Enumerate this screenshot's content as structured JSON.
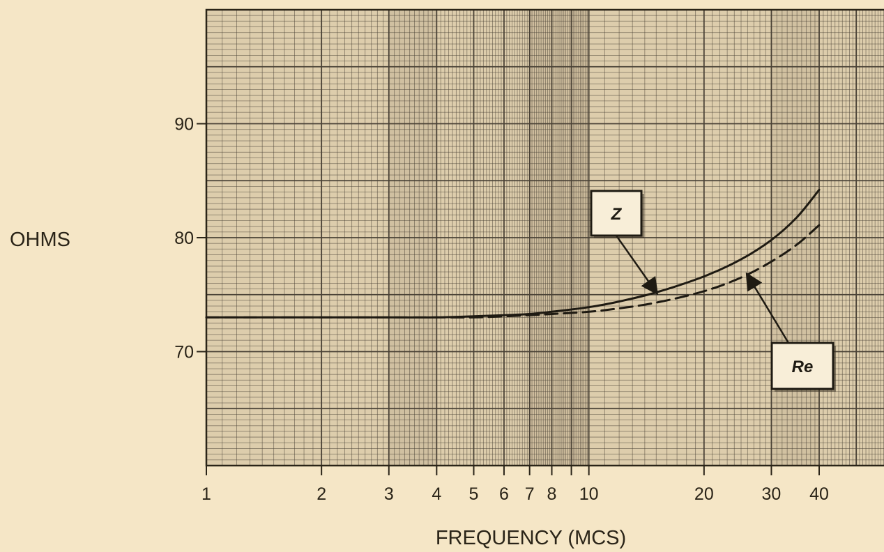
{
  "chart_data": {
    "type": "line",
    "xscale": "log",
    "xlabel": "FREQUENCY (MCS)",
    "ylabel": "OHMS",
    "xlim": [
      1,
      40
    ],
    "ylim": [
      60,
      100
    ],
    "grid": true,
    "x_ticks": [
      1,
      2,
      3,
      4,
      5,
      6,
      7,
      8,
      9,
      10,
      20,
      30,
      40
    ],
    "x_tick_labels": [
      "1",
      "2",
      "3",
      "4",
      "5",
      "6",
      "7",
      "8",
      "",
      "10",
      "20",
      "30",
      "40"
    ],
    "y_ticks": [
      70,
      80,
      90
    ],
    "y_tick_labels": [
      "70",
      "80",
      "90"
    ],
    "series": [
      {
        "name": "Z",
        "style": "solid",
        "x": [
          1,
          2,
          3,
          4,
          5,
          6,
          7,
          8,
          10,
          12,
          15,
          20,
          25,
          30,
          35,
          40
        ],
        "y": [
          73,
          73,
          73,
          73,
          73.1,
          73.2,
          73.3,
          73.5,
          73.9,
          74.4,
          75.2,
          76.6,
          78.1,
          79.8,
          81.8,
          84.2
        ]
      },
      {
        "name": "Re",
        "style": "dashed",
        "x": [
          1,
          2,
          3,
          4,
          5,
          6,
          7,
          8,
          10,
          12,
          15,
          20,
          25,
          30,
          35,
          40
        ],
        "y": [
          73,
          73,
          73,
          73,
          73,
          73.1,
          73.2,
          73.3,
          73.5,
          73.8,
          74.3,
          75.3,
          76.5,
          77.9,
          79.4,
          81.1
        ]
      }
    ],
    "annotations": [
      {
        "label": "Z",
        "series": "Z",
        "points_to": [
          15,
          75.2
        ]
      },
      {
        "label": "Re",
        "series": "Re",
        "points_to": [
          26,
          76.7
        ]
      }
    ],
    "colors": {
      "paper": "#f5e6c6",
      "grid_bg": "#ddcdac",
      "shaded_band": "#c4b495",
      "grid_line": "#4a4236",
      "curve": "#1e1a12"
    }
  }
}
